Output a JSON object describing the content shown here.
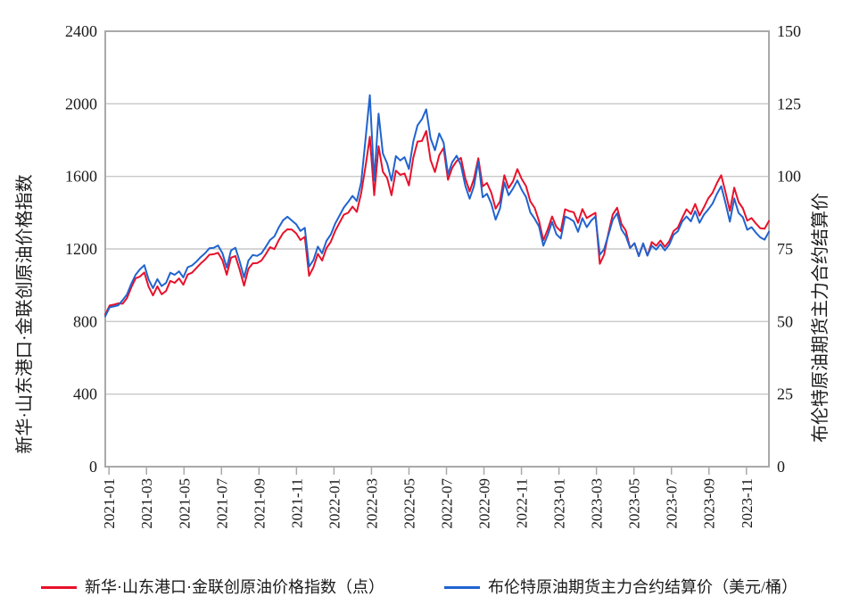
{
  "chart_data": {
    "type": "line",
    "title": "",
    "grid": "horizontal",
    "legend_position": "bottom",
    "left_axis": {
      "label": "新华·山东港口·金联创原油价格指数",
      "ticks": [
        0,
        400,
        800,
        1200,
        1600,
        2000,
        2400
      ],
      "range": [
        0,
        2400
      ]
    },
    "right_axis": {
      "label": "布伦特原油期货主力合约结算价",
      "ticks": [
        0,
        25,
        50,
        75,
        100,
        125,
        150
      ],
      "range": [
        0,
        150
      ]
    },
    "x_axis": {
      "tick_labels": [
        "2021-01",
        "2021-03",
        "2021-05",
        "2021-07",
        "2021-09",
        "2021-11",
        "2022-01",
        "2022-03",
        "2022-05",
        "2022-07",
        "2022-09",
        "2022-11",
        "2023-01",
        "2023-03",
        "2023-05",
        "2023-07",
        "2023-09",
        "2023-11"
      ],
      "first_tick_month": 0.2,
      "tick_interval_months": 2,
      "total_months": 35.4,
      "sampling": "weekly, 2021-01 through mid 2023-12"
    },
    "series": [
      {
        "name": "新华·山东港口·金联创原油价格指数（点）",
        "color": "#e8112a",
        "axis": "left",
        "values": [
          839,
          888,
          893,
          900,
          898,
          929,
          988,
          1038,
          1048,
          1070,
          992,
          944,
          994,
          950,
          968,
          1024,
          1013,
          1037,
          1003,
          1059,
          1069,
          1095,
          1120,
          1141,
          1168,
          1171,
          1179,
          1138,
          1058,
          1152,
          1161,
          1086,
          998,
          1091,
          1121,
          1122,
          1136,
          1171,
          1210,
          1199,
          1248,
          1288,
          1308,
          1307,
          1286,
          1249,
          1267,
          1052,
          1099,
          1173,
          1136,
          1205,
          1240,
          1299,
          1344,
          1389,
          1399,
          1433,
          1404,
          1508,
          1656,
          1818,
          1496,
          1766,
          1626,
          1590,
          1496,
          1632,
          1608,
          1616,
          1550,
          1702,
          1792,
          1795,
          1850,
          1690,
          1624,
          1717,
          1756,
          1581,
          1648,
          1684,
          1702,
          1589,
          1517,
          1586,
          1700,
          1545,
          1564,
          1510,
          1422,
          1462,
          1606,
          1536,
          1573,
          1640,
          1586,
          1546,
          1462,
          1426,
          1353,
          1248,
          1307,
          1379,
          1322,
          1298,
          1419,
          1408,
          1402,
          1344,
          1420,
          1370,
          1385,
          1399,
          1118,
          1168,
          1288,
          1390,
          1427,
          1337,
          1302,
          1205,
          1232,
          1160,
          1230,
          1163,
          1238,
          1217,
          1246,
          1212,
          1242,
          1298,
          1318,
          1370,
          1419,
          1392,
          1448,
          1384,
          1429,
          1478,
          1510,
          1562,
          1606,
          1511,
          1410,
          1538,
          1458,
          1424,
          1356,
          1370,
          1340,
          1314,
          1311,
          1354
        ]
      },
      {
        "name": "布伦特原油期货主力合约结算价（美元/桶）",
        "color": "#2063cf",
        "axis": "right",
        "values": [
          51.8,
          54.9,
          55.2,
          55.6,
          57.4,
          59.3,
          63.0,
          66.1,
          68.0,
          69.4,
          64.5,
          61.5,
          64.6,
          62.2,
          63.3,
          66.8,
          66.1,
          67.3,
          65.2,
          68.7,
          69.3,
          70.6,
          72.2,
          73.5,
          75.2,
          75.4,
          76.2,
          73.6,
          68.6,
          74.5,
          75.4,
          70.7,
          65.2,
          71.0,
          72.9,
          72.6,
          73.5,
          75.7,
          78.1,
          79.3,
          82.4,
          84.9,
          86.1,
          84.8,
          83.5,
          81.2,
          82.3,
          68.9,
          71.2,
          75.8,
          73.5,
          77.8,
          80.0,
          83.7,
          86.5,
          89.3,
          91.2,
          93.3,
          91.5,
          98.0,
          112.9,
          128.0,
          98.5,
          121.6,
          107.9,
          104.4,
          98.5,
          107.0,
          105.5,
          106.6,
          102.5,
          112.0,
          117.6,
          119.7,
          123.1,
          113.1,
          109.0,
          114.8,
          111.6,
          100.7,
          104.9,
          107.1,
          103.9,
          96.8,
          92.3,
          96.6,
          105.1,
          92.8,
          94.0,
          90.6,
          85.1,
          88.9,
          97.9,
          93.5,
          95.8,
          98.6,
          95.4,
          92.9,
          87.6,
          85.4,
          82.7,
          76.1,
          79.8,
          84.3,
          80.1,
          78.6,
          86.2,
          85.5,
          84.5,
          80.9,
          85.6,
          82.5,
          84.7,
          86.2,
          73.0,
          74.9,
          79.9,
          85.0,
          87.3,
          81.7,
          79.5,
          75.3,
          77.0,
          72.5,
          76.9,
          72.7,
          76.1,
          74.8,
          76.6,
          74.5,
          76.4,
          79.9,
          81.1,
          84.4,
          86.2,
          84.5,
          88.0,
          84.0,
          86.8,
          88.6,
          90.6,
          93.9,
          96.6,
          90.7,
          84.4,
          92.4,
          87.4,
          85.9,
          81.6,
          82.5,
          80.6,
          79.0,
          78.2,
          80.9
        ]
      }
    ]
  },
  "style": {
    "grid_color": "#c9c9c9",
    "border_color": "#a9a9a9",
    "tick_color": "#a9a9a9",
    "text_color": "#1a1a1a",
    "background": "#ffffff"
  }
}
